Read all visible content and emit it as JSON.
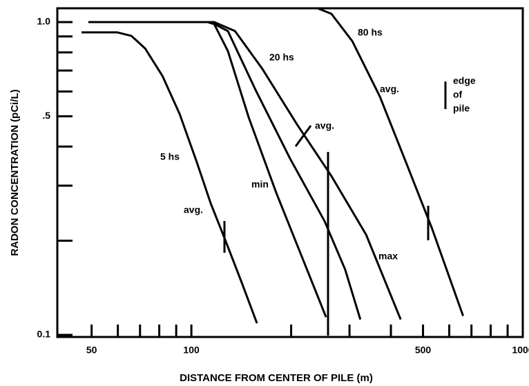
{
  "chart_data": {
    "type": "line",
    "xlabel": "DISTANCE FROM CENTER OF PILE (m)",
    "ylabel": "RADON CONCENTRATION (pCi/L)",
    "xscale": "log",
    "yscale": "log",
    "xlim": [
      39.4,
      1000
    ],
    "ylim": [
      0.0985,
      1.107
    ],
    "xticks": [
      50,
      100,
      500,
      1000
    ],
    "xticks_minor": [
      60,
      70,
      80,
      90,
      200,
      300,
      400,
      600,
      700,
      800,
      900
    ],
    "yticks": [
      {
        "value": 1,
        "label": "1.0"
      },
      {
        "value": 0.5,
        "label": ".5"
      },
      {
        "value": 0.1,
        "label": "0.1"
      }
    ],
    "yticks_minor": [
      0.9,
      0.8,
      0.7,
      0.6,
      0.4,
      0.3,
      0.2
    ],
    "series": [
      {
        "name": "5 hs",
        "color": "#000000",
        "x": [
          46.6,
          59.8,
          65.9,
          72.5,
          81.8,
          92.2,
          103.9,
          114.4,
          125.9,
          141.9,
          157.7
        ],
        "values": [
          0.927,
          0.927,
          0.904,
          0.824,
          0.673,
          0.508,
          0.356,
          0.263,
          0.204,
          0.147,
          0.109
        ]
      },
      {
        "name": "min",
        "color": "#000000",
        "x": [
          48.9,
          111.7,
          117.2,
          128.9,
          148.9,
          180.5,
          218.7,
          254.9
        ],
        "values": [
          1.0,
          1.0,
          0.985,
          0.808,
          0.496,
          0.284,
          0.171,
          0.114
        ]
      },
      {
        "name": "20 hs",
        "color": "#000000",
        "x": [
          48.9,
          114.4,
          128.9,
          156.1,
          198.6,
          252.3,
          291.0,
          323.5
        ],
        "values": [
          1.0,
          1.0,
          0.936,
          0.608,
          0.366,
          0.231,
          0.162,
          0.112
        ]
      },
      {
        "name": "max",
        "color": "#000000",
        "x": [
          48.9,
          117.2,
          135.4,
          163.8,
          208.3,
          264.6,
          336.8,
          428.2
        ],
        "values": [
          1.0,
          1.0,
          0.936,
          0.708,
          0.471,
          0.322,
          0.209,
          0.112
        ]
      },
      {
        "name": "80 hs",
        "color": "#000000",
        "x": [
          48.9,
          240.4,
          264.6,
          306.1,
          370.5,
          448.5,
          531.4,
          660.7
        ],
        "values": [
          1.107,
          1.107,
          1.063,
          0.868,
          0.578,
          0.347,
          0.22,
          0.115
        ]
      }
    ],
    "annotations": [
      "avg.",
      "avg.",
      "avg.",
      "edge",
      "of",
      "pile"
    ]
  }
}
